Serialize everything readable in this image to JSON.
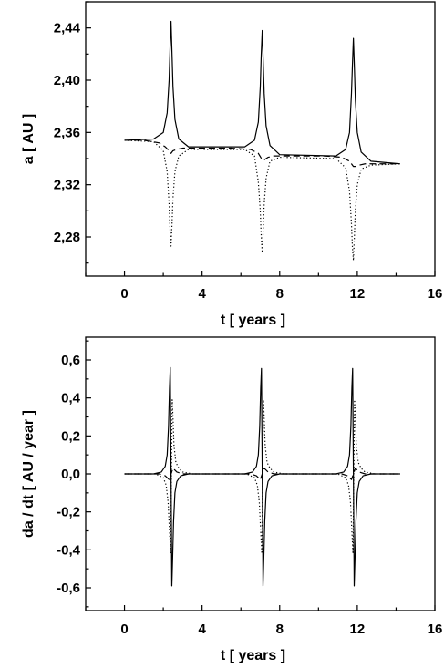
{
  "chart_data": [
    {
      "type": "line",
      "xlabel": "t  [ years ]",
      "ylabel": "a  [ AU ]",
      "xlim": [
        -2,
        16
      ],
      "ylim": [
        2.25,
        2.46
      ],
      "x_ticks": [
        0,
        4,
        8,
        12,
        16
      ],
      "x_tick_labels": [
        "0",
        "4",
        "8",
        "12",
        "16"
      ],
      "y_ticks": [
        2.28,
        2.32,
        2.36,
        2.4,
        2.44
      ],
      "y_tick_labels": [
        "2,28",
        "2,32",
        "2,36",
        "2,40",
        "2,44"
      ],
      "grid": false,
      "series": [
        {
          "style": "solid",
          "x": [
            0,
            1.5,
            2.0,
            2.2,
            2.3,
            2.35,
            2.4,
            2.45,
            2.5,
            2.6,
            2.8,
            3.3,
            6.2,
            6.7,
            6.9,
            7.0,
            7.05,
            7.1,
            7.15,
            7.2,
            7.3,
            7.5,
            8.0,
            10.9,
            11.4,
            11.6,
            11.7,
            11.75,
            11.8,
            11.85,
            11.9,
            12.0,
            12.2,
            12.7,
            14.2
          ],
          "y": [
            2.354,
            2.355,
            2.36,
            2.375,
            2.4,
            2.425,
            2.445,
            2.42,
            2.395,
            2.37,
            2.355,
            2.349,
            2.349,
            2.354,
            2.368,
            2.395,
            2.42,
            2.438,
            2.415,
            2.39,
            2.365,
            2.35,
            2.343,
            2.342,
            2.347,
            2.36,
            2.39,
            2.412,
            2.432,
            2.41,
            2.385,
            2.36,
            2.345,
            2.338,
            2.336
          ]
        },
        {
          "style": "dashed",
          "x": [
            0,
            1.0,
            1.8,
            2.1,
            2.3,
            2.4,
            2.5,
            2.7,
            3.0,
            3.5,
            5.5,
            6.5,
            6.9,
            7.1,
            7.2,
            7.4,
            7.7,
            8.2,
            10.3,
            11.2,
            11.6,
            11.8,
            11.9,
            12.1,
            12.4,
            13.0,
            14.2
          ],
          "y": [
            2.354,
            2.354,
            2.352,
            2.349,
            2.346,
            2.344,
            2.346,
            2.347,
            2.348,
            2.348,
            2.348,
            2.347,
            2.344,
            2.339,
            2.339,
            2.341,
            2.342,
            2.342,
            2.342,
            2.341,
            2.338,
            2.334,
            2.334,
            2.335,
            2.336,
            2.336,
            2.336
          ]
        },
        {
          "style": "dotted",
          "x": [
            0,
            1.5,
            2.0,
            2.2,
            2.3,
            2.35,
            2.4,
            2.45,
            2.5,
            2.6,
            2.8,
            3.3,
            6.2,
            6.7,
            6.9,
            7.0,
            7.05,
            7.1,
            7.15,
            7.2,
            7.3,
            7.5,
            8.0,
            10.9,
            11.4,
            11.6,
            11.7,
            11.75,
            11.8,
            11.85,
            11.9,
            12.0,
            12.2,
            12.7,
            14.2
          ],
          "y": [
            2.354,
            2.353,
            2.346,
            2.33,
            2.305,
            2.285,
            2.273,
            2.29,
            2.31,
            2.33,
            2.342,
            2.347,
            2.347,
            2.342,
            2.322,
            2.3,
            2.28,
            2.268,
            2.285,
            2.305,
            2.325,
            2.338,
            2.341,
            2.34,
            2.333,
            2.315,
            2.29,
            2.272,
            2.262,
            2.28,
            2.3,
            2.32,
            2.332,
            2.335,
            2.336
          ]
        }
      ]
    },
    {
      "type": "line",
      "xlabel": "t  [ years ]",
      "ylabel": "da / dt  [ AU / year ]",
      "xlim": [
        -2,
        16
      ],
      "ylim": [
        -0.72,
        0.72
      ],
      "x_ticks": [
        0,
        4,
        8,
        12,
        16
      ],
      "x_tick_labels": [
        "0",
        "4",
        "8",
        "12",
        "16"
      ],
      "y_ticks": [
        -0.6,
        -0.4,
        -0.2,
        0.0,
        0.2,
        0.4,
        0.6
      ],
      "y_tick_labels": [
        "-0,6",
        "-0,4",
        "-0,2",
        "0,0",
        "0,2",
        "0,4",
        "0,6"
      ],
      "grid": false,
      "series": [
        {
          "style": "solid",
          "x": [
            0,
            1.5,
            1.9,
            2.1,
            2.2,
            2.27,
            2.32,
            2.36,
            2.4,
            2.44,
            2.48,
            2.53,
            2.6,
            2.7,
            2.9,
            3.3,
            6.2,
            6.6,
            6.8,
            6.9,
            6.97,
            7.02,
            7.06,
            7.1,
            7.14,
            7.18,
            7.23,
            7.3,
            7.4,
            7.6,
            8.0,
            10.9,
            11.3,
            11.5,
            11.6,
            11.67,
            11.72,
            11.76,
            11.8,
            11.84,
            11.88,
            11.93,
            12.0,
            12.1,
            12.3,
            12.7,
            14.2
          ],
          "y": [
            0.0,
            0.0,
            0.01,
            0.04,
            0.1,
            0.25,
            0.45,
            0.56,
            0.0,
            -0.59,
            -0.45,
            -0.25,
            -0.1,
            -0.04,
            -0.01,
            0.0,
            0.0,
            0.01,
            0.04,
            0.1,
            0.25,
            0.45,
            0.555,
            0.0,
            -0.59,
            -0.45,
            -0.25,
            -0.1,
            -0.04,
            -0.01,
            0.0,
            0.0,
            0.01,
            0.04,
            0.1,
            0.25,
            0.45,
            0.555,
            0.0,
            -0.59,
            -0.45,
            -0.25,
            -0.1,
            -0.04,
            -0.01,
            0.0,
            0.0
          ]
        },
        {
          "style": "dashed",
          "x": [
            0,
            1.8,
            2.1,
            2.3,
            2.4,
            2.5,
            2.7,
            3.0,
            6.5,
            6.8,
            7.0,
            7.1,
            7.2,
            7.4,
            7.7,
            11.2,
            11.5,
            11.7,
            11.8,
            11.9,
            12.1,
            12.4,
            14.2
          ],
          "y": [
            0.0,
            0.0,
            -0.01,
            -0.03,
            0.0,
            0.03,
            0.01,
            0.0,
            0.0,
            -0.01,
            -0.03,
            0.0,
            0.03,
            0.01,
            0.0,
            0.0,
            -0.01,
            -0.03,
            0.0,
            0.03,
            0.01,
            0.0,
            0.0
          ]
        },
        {
          "style": "dotted",
          "x": [
            0,
            1.6,
            2.0,
            2.15,
            2.25,
            2.32,
            2.38,
            2.42,
            2.46,
            2.5,
            2.55,
            2.65,
            2.8,
            3.0,
            3.5,
            6.3,
            6.7,
            6.85,
            6.95,
            7.02,
            7.08,
            7.12,
            7.16,
            7.2,
            7.25,
            7.35,
            7.5,
            7.7,
            8.2,
            11.0,
            11.4,
            11.55,
            11.65,
            11.72,
            11.78,
            11.82,
            11.86,
            11.9,
            11.95,
            12.05,
            12.2,
            12.4,
            12.9,
            14.2
          ],
          "y": [
            0.0,
            0.0,
            -0.02,
            -0.06,
            -0.15,
            -0.3,
            -0.42,
            0.0,
            0.39,
            0.3,
            0.15,
            0.06,
            0.03,
            0.01,
            0.0,
            0.0,
            -0.02,
            -0.06,
            -0.15,
            -0.3,
            -0.42,
            0.0,
            0.39,
            0.3,
            0.15,
            0.06,
            0.03,
            0.01,
            0.0,
            0.0,
            -0.02,
            -0.06,
            -0.15,
            -0.3,
            -0.42,
            0.0,
            0.39,
            0.3,
            0.15,
            0.06,
            0.03,
            0.01,
            0.0,
            0.0
          ]
        }
      ]
    }
  ]
}
